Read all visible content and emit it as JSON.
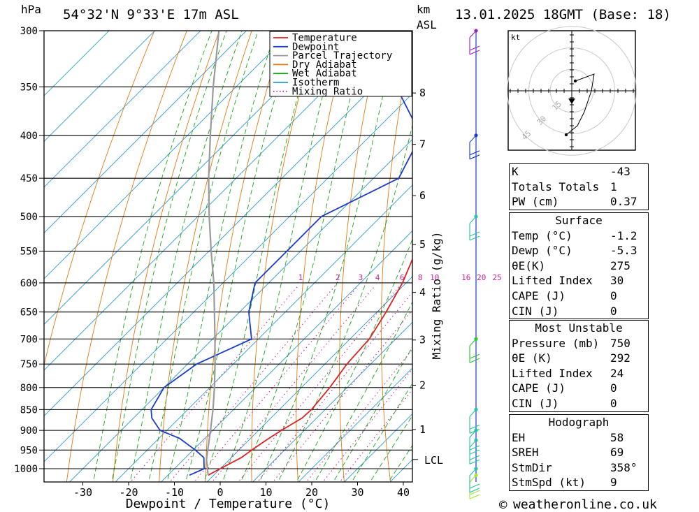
{
  "header": {
    "location": "54°32'N  9°33'E  17m  ASL",
    "datetime": "13.01.2025  18GMT  (Base: 18)",
    "pressure_unit": "hPa",
    "height_unit": "km",
    "height_ref": "ASL"
  },
  "chart_data": {
    "type": "line",
    "title": "54°32'N  9°33'E  17m  ASL",
    "xlabel": "Dewpoint / Temperature (°C)",
    "ylabel": "hPa",
    "y2label": "Mixing Ratio (g/kg)",
    "xlim": [
      -40,
      40
    ],
    "ylim": [
      1000,
      300
    ],
    "y_scale": "log",
    "x_ticks": [
      -30,
      -20,
      -10,
      0,
      10,
      20,
      30,
      40
    ],
    "pressure_levels": [
      300,
      350,
      400,
      450,
      500,
      550,
      600,
      650,
      700,
      750,
      800,
      850,
      900,
      950,
      1000
    ],
    "km_ticks": [
      {
        "km": 1,
        "p": 898
      },
      {
        "km": 2,
        "p": 795
      },
      {
        "km": 3,
        "p": 702
      },
      {
        "km": 4,
        "p": 616
      },
      {
        "km": 5,
        "p": 540
      },
      {
        "km": 6,
        "p": 472
      },
      {
        "km": 7,
        "p": 410
      },
      {
        "km": 8,
        "p": 356
      }
    ],
    "lcl_label": "LCL",
    "lcl_pressure": 975,
    "mixing_ratio_labels": [
      "1",
      "2",
      "3",
      "4",
      "6",
      "8",
      "10",
      "16",
      "20",
      "25"
    ],
    "mixing_ratio_label_pressure": 600,
    "legend": {
      "position": "top-right",
      "entries": [
        {
          "label": "Temperature",
          "color": "#e02020",
          "style": "solid"
        },
        {
          "label": "Dewpoint",
          "color": "#1a3ad0",
          "style": "solid"
        },
        {
          "label": "Parcel Trajectory",
          "color": "#9a9a9a",
          "style": "solid"
        },
        {
          "label": "Dry Adiabat",
          "color": "#e07a10",
          "style": "solid"
        },
        {
          "label": "Wet Adiabat",
          "color": "#18a818",
          "style": "solid"
        },
        {
          "label": "Isotherm",
          "color": "#2a9ad8",
          "style": "solid"
        },
        {
          "label": "Mixing Ratio",
          "color": "#d0209a",
          "style": "dotted"
        }
      ]
    },
    "series": [
      {
        "name": "Temperature",
        "color": "#e02020",
        "points": [
          [
            1018,
            -1.2
          ],
          [
            1000,
            0.0
          ],
          [
            970,
            2.2
          ],
          [
            950,
            2.8
          ],
          [
            920,
            4.0
          ],
          [
            900,
            5.0
          ],
          [
            870,
            6.8
          ],
          [
            850,
            7.0
          ],
          [
            800,
            6.2
          ],
          [
            750,
            4.8
          ],
          [
            700,
            4.2
          ],
          [
            650,
            2.0
          ],
          [
            600,
            -0.8
          ],
          [
            550,
            -4.8
          ],
          [
            500,
            -11.5
          ],
          [
            450,
            -19.5
          ],
          [
            400,
            -27.5
          ],
          [
            350,
            -40.0
          ],
          [
            300,
            -53.0
          ]
        ]
      },
      {
        "name": "Dewpoint",
        "color": "#1a3ad0",
        "points": [
          [
            1018,
            -5.3
          ],
          [
            1000,
            -3.5
          ],
          [
            970,
            -6.0
          ],
          [
            950,
            -9.5
          ],
          [
            920,
            -15.5
          ],
          [
            900,
            -21.5
          ],
          [
            870,
            -26.0
          ],
          [
            850,
            -28.0
          ],
          [
            800,
            -30.0
          ],
          [
            750,
            -28.0
          ],
          [
            700,
            -21.5
          ],
          [
            650,
            -28.0
          ],
          [
            600,
            -33.0
          ],
          [
            550,
            -33.0
          ],
          [
            500,
            -33.0
          ],
          [
            450,
            -24.5
          ],
          [
            400,
            -29.0
          ],
          [
            350,
            -45.0
          ],
          [
            300,
            -58.0
          ]
        ]
      },
      {
        "name": "Parcel Trajectory",
        "color": "#9a9a9a",
        "points": [
          [
            1018,
            -1.2
          ],
          [
            975,
            -5.0
          ],
          [
            950,
            -6.8
          ],
          [
            900,
            -10.5
          ],
          [
            850,
            -14.5
          ],
          [
            800,
            -19.0
          ],
          [
            750,
            -24.0
          ],
          [
            700,
            -29.5
          ],
          [
            650,
            -35.5
          ],
          [
            600,
            -42.0
          ],
          [
            550,
            -49.5
          ],
          [
            500,
            -57.5
          ],
          [
            450,
            -66.0
          ],
          [
            400,
            -75.0
          ],
          [
            350,
            -85.0
          ],
          [
            300,
            -96.0
          ]
        ]
      }
    ],
    "wind_barbs": [
      {
        "p": 1018,
        "color": "#a8e830"
      },
      {
        "p": 1000,
        "color": "#20c898"
      },
      {
        "p": 925,
        "color": "#20c898"
      },
      {
        "p": 900,
        "color": "#20c898"
      },
      {
        "p": 850,
        "color": "#20c898"
      },
      {
        "p": 700,
        "color": "#28c828"
      },
      {
        "p": 500,
        "color": "#20c898"
      },
      {
        "p": 400,
        "color": "#1a3ad0"
      },
      {
        "p": 300,
        "color": "#a020c0"
      }
    ],
    "hodograph": {
      "unit": "kt",
      "ring_labels": [
        "15",
        "30",
        "45"
      ]
    }
  },
  "indices": {
    "basic": [
      {
        "label": "K",
        "value": "-43"
      },
      {
        "label": "Totals Totals",
        "value": "1"
      },
      {
        "label": "PW (cm)",
        "value": "0.37"
      }
    ],
    "surface": {
      "title": "Surface",
      "rows": [
        {
          "label": "Temp (°C)",
          "value": "-1.2"
        },
        {
          "label": "Dewp (°C)",
          "value": "-5.3"
        },
        {
          "label": "θE(K)",
          "value": "275"
        },
        {
          "label": "Lifted Index",
          "value": "30"
        },
        {
          "label": "CAPE (J)",
          "value": "0"
        },
        {
          "label": "CIN (J)",
          "value": "0"
        }
      ]
    },
    "most_unstable": {
      "title": "Most Unstable",
      "rows": [
        {
          "label": "Pressure (mb)",
          "value": "750"
        },
        {
          "label": "θE (K)",
          "value": "292"
        },
        {
          "label": "Lifted Index",
          "value": "24"
        },
        {
          "label": "CAPE (J)",
          "value": "0"
        },
        {
          "label": "CIN (J)",
          "value": "0"
        }
      ]
    },
    "hodograph": {
      "title": "Hodograph",
      "rows": [
        {
          "label": "EH",
          "value": "58"
        },
        {
          "label": "SREH",
          "value": "69"
        },
        {
          "label": "StmDir",
          "value": "358°"
        },
        {
          "label": "StmSpd (kt)",
          "value": "9"
        }
      ]
    }
  },
  "footer": {
    "copyright_symbol": "©",
    "site": "weatheronline.co.uk"
  }
}
